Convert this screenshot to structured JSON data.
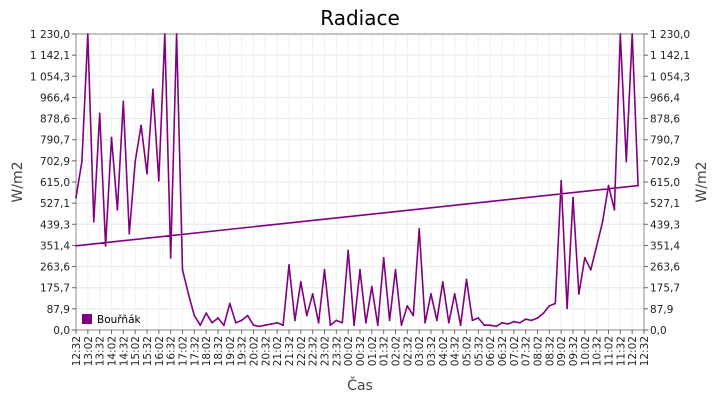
{
  "chart_data": {
    "type": "line",
    "title": "Radiace",
    "xlabel": "Čas",
    "ylabel": "W/m2",
    "ylim": [
      0,
      1230
    ],
    "y_ticks": [
      "0,0",
      "87,9",
      "175,7",
      "263,6",
      "351,4",
      "439,3",
      "527,1",
      "615,0",
      "702,9",
      "790,7",
      "878,6",
      "966,4",
      "1 054,3",
      "1 142,1",
      "1 230,0"
    ],
    "y_tick_values": [
      0,
      87.9,
      175.7,
      263.6,
      351.4,
      439.3,
      527.1,
      615.0,
      702.9,
      790.7,
      878.6,
      966.4,
      1054.3,
      1142.1,
      1230.0
    ],
    "x_ticks": [
      "12:32",
      "13:02",
      "13:32",
      "14:02",
      "14:32",
      "15:02",
      "15:32",
      "16:02",
      "16:32",
      "17:02",
      "17:32",
      "18:02",
      "18:32",
      "19:02",
      "19:32",
      "20:02",
      "20:32",
      "21:02",
      "21:32",
      "22:02",
      "22:32",
      "23:02",
      "23:32",
      "00:02",
      "00:32",
      "01:02",
      "01:32",
      "02:02",
      "02:32",
      "03:02",
      "03:32",
      "04:02",
      "04:32",
      "05:02",
      "05:32",
      "06:02",
      "06:32",
      "07:02",
      "07:32",
      "08:02",
      "08:32",
      "09:02",
      "09:32",
      "10:02",
      "10:32",
      "11:02",
      "11:32",
      "12:02",
      "12:32"
    ],
    "grid": true,
    "legend_position": "bottom-left",
    "series": [
      {
        "name": "Bouřňák",
        "color": "#800080",
        "x": [
          "12:32",
          "12:47",
          "13:02",
          "13:17",
          "13:32",
          "13:47",
          "14:02",
          "14:17",
          "14:32",
          "14:47",
          "15:02",
          "15:17",
          "15:32",
          "15:47",
          "16:02",
          "16:17",
          "16:32",
          "16:47",
          "17:02",
          "17:17",
          "17:32",
          "17:47",
          "18:02",
          "18:17",
          "18:32",
          "18:47",
          "19:02",
          "19:17",
          "19:32",
          "19:47",
          "20:02",
          "20:17",
          "20:32",
          "20:47",
          "21:02",
          "21:17",
          "21:32",
          "21:47",
          "22:02",
          "22:17",
          "22:32",
          "22:47",
          "23:02",
          "23:17",
          "23:32",
          "23:47",
          "00:02",
          "00:17",
          "00:32",
          "00:47",
          "01:02",
          "01:17",
          "01:32",
          "01:47",
          "02:02",
          "02:17",
          "02:32",
          "02:47",
          "03:02",
          "03:17",
          "03:32",
          "03:47",
          "04:02",
          "04:17",
          "04:32",
          "04:47",
          "05:02",
          "05:17",
          "05:32",
          "05:47",
          "06:02",
          "06:17",
          "06:32",
          "06:47",
          "07:02",
          "07:17",
          "07:32",
          "07:47",
          "08:02",
          "08:17",
          "08:32",
          "08:47",
          "09:02",
          "09:17",
          "09:32",
          "09:47",
          "10:02",
          "10:17",
          "10:32",
          "10:47",
          "11:02",
          "11:17",
          "11:32",
          "11:47",
          "12:02",
          "12:17",
          "12:32"
        ],
        "values": [
          550,
          700,
          1230,
          450,
          900,
          350,
          800,
          500,
          950,
          400,
          700,
          850,
          650,
          1000,
          620,
          1230,
          300,
          1230,
          250,
          150,
          60,
          20,
          70,
          30,
          50,
          20,
          110,
          30,
          40,
          60,
          20,
          15,
          20,
          25,
          30,
          20,
          270,
          40,
          200,
          60,
          150,
          30,
          250,
          20,
          40,
          30,
          330,
          20,
          250,
          30,
          180,
          20,
          300,
          40,
          250,
          20,
          100,
          60,
          420,
          30,
          150,
          40,
          200,
          30,
          150,
          20,
          210,
          40,
          50,
          20,
          20,
          15,
          30,
          25,
          35,
          30,
          45,
          40,
          50,
          70,
          100,
          110,
          620,
          90,
          550,
          150,
          300,
          250,
          350,
          450,
          600,
          500,
          1230,
          700,
          1230,
          600,
          350
        ]
      }
    ]
  }
}
